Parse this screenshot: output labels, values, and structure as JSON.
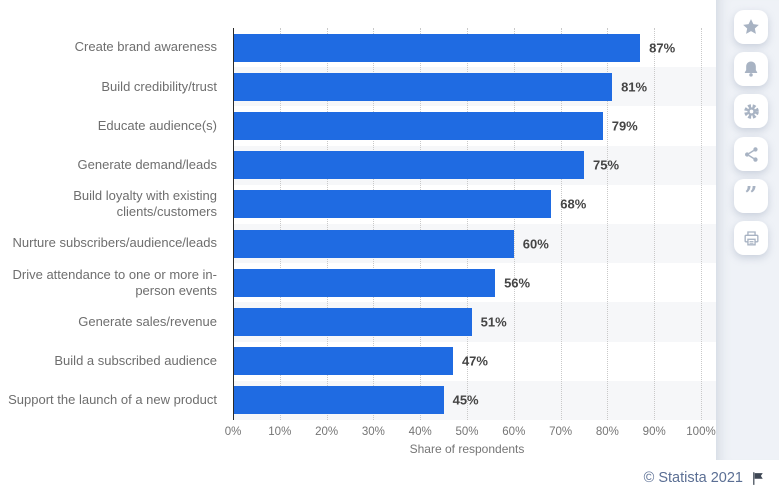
{
  "chart_data": {
    "type": "bar",
    "orientation": "horizontal",
    "categories": [
      "Create brand awareness",
      "Build credibility/trust",
      "Educate audience(s)",
      "Generate demand/leads",
      "Build loyalty with existing clients/customers",
      "Nurture subscribers/audience/leads",
      "Drive attendance to one or more in-person events",
      "Generate sales/revenue",
      "Build a subscribed audience",
      "Support the launch of a new product"
    ],
    "values": [
      87,
      81,
      79,
      75,
      68,
      60,
      56,
      51,
      47,
      45
    ],
    "unit": "%",
    "xlabel": "Share of respondents",
    "x_ticks": [
      "0%",
      "10%",
      "20%",
      "30%",
      "40%",
      "50%",
      "60%",
      "70%",
      "80%",
      "90%",
      "100%"
    ],
    "xlim": [
      0,
      100
    ],
    "bar_color": "#1f6be2",
    "stripe_color": "#f6f7f9",
    "grid": "vertical-dotted",
    "legend": "none"
  },
  "sidebar": {
    "buttons": [
      {
        "icon": "star-icon",
        "name": "favorite"
      },
      {
        "icon": "bell-icon",
        "name": "notifications"
      },
      {
        "icon": "gear-icon",
        "name": "settings"
      },
      {
        "icon": "share-icon",
        "name": "share"
      },
      {
        "icon": "quote-icon",
        "name": "cite"
      },
      {
        "icon": "print-icon",
        "name": "print"
      }
    ]
  },
  "footer": {
    "copyright": "© Statista 2021"
  }
}
